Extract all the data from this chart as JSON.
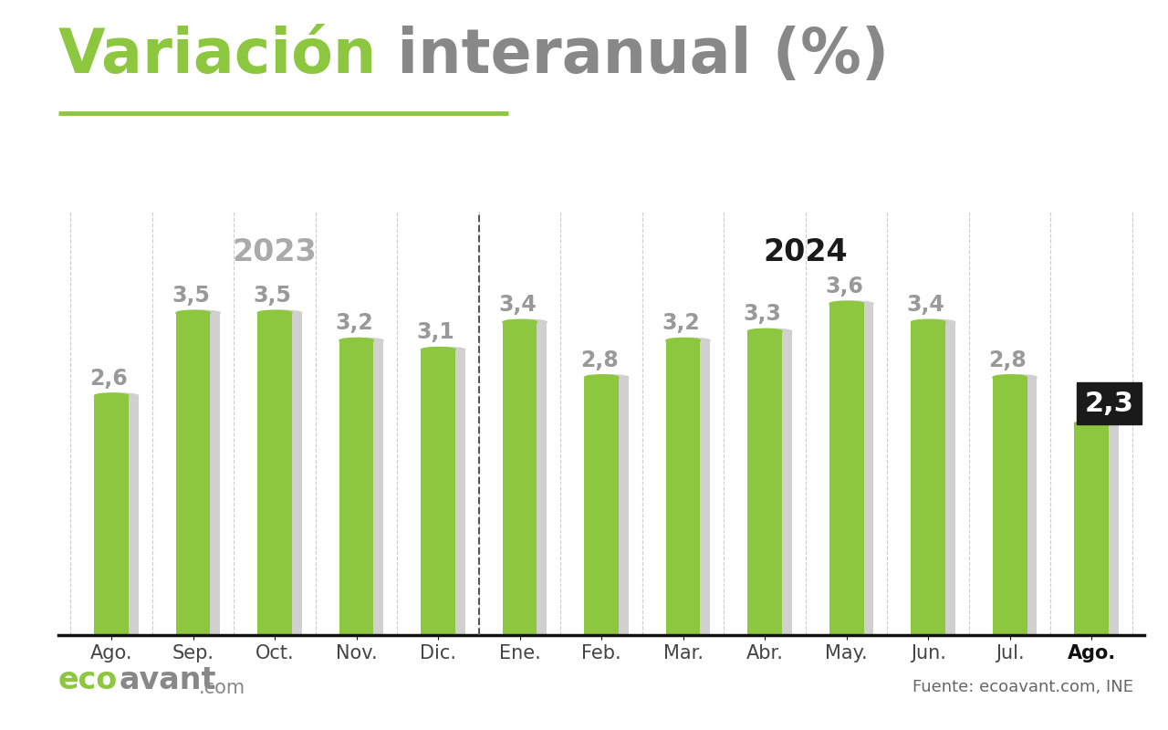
{
  "categories": [
    "Ago.",
    "Sep.",
    "Oct.",
    "Nov.",
    "Dic.",
    "Ene.",
    "Feb.",
    "Mar.",
    "Abr.",
    "May.",
    "Jun.",
    "Jul.",
    "Ago."
  ],
  "values": [
    2.6,
    3.5,
    3.5,
    3.2,
    3.1,
    3.4,
    2.8,
    3.2,
    3.3,
    3.6,
    3.4,
    2.8,
    2.3
  ],
  "year_2023_label": "2023",
  "year_2024_label": "2024",
  "divider_after_idx": 4,
  "title_green": "Variación",
  "title_gray": " interanual (%)",
  "bar_color_green": "#8DC63F",
  "bar_color_shadow": "#D0D0D0",
  "title_green_color": "#8DC63F",
  "title_gray_color": "#888888",
  "value_label_color": "#999999",
  "last_bar_label_color": "#ffffff",
  "last_bar_label_bg": "#1a1a1a",
  "year_2023_color": "#aaaaaa",
  "year_2024_color": "#1a1a1a",
  "axis_label_color": "#444444",
  "divider_color": "#555555",
  "underline_color": "#8DC63F",
  "background_color": "#ffffff",
  "source_text": "Fuente: ecoavant.com, INE",
  "title_fontsize": 48,
  "bar_label_fontsize": 17,
  "year_label_fontsize": 24,
  "axis_tick_fontsize": 15,
  "source_fontsize": 13,
  "ylim": [
    0,
    4.6
  ],
  "figsize": [
    12.8,
    8.0
  ]
}
